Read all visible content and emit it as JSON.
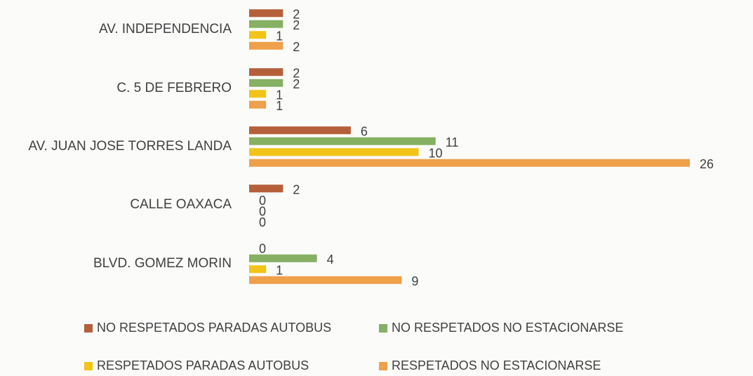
{
  "chart_data": {
    "type": "hbar",
    "categories": [
      "AV. INDEPENDENCIA",
      "C. 5 DE FEBRERO",
      "AV. JUAN JOSE TORRES LANDA",
      "CALLE OAXACA",
      "BLVD. GOMEZ MORIN"
    ],
    "series": [
      {
        "name": "NO RESPETADOS PARADAS AUTOBUS",
        "color": "#b5603a",
        "values": [
          2,
          2,
          6,
          2,
          0
        ]
      },
      {
        "name": "NO RESPETADOS NO ESTACIONARSE",
        "color": "#86b062",
        "values": [
          2,
          2,
          11,
          0,
          4
        ]
      },
      {
        "name": "RESPETADOS PARADAS AUTOBUS",
        "color": "#f2c418",
        "values": [
          1,
          1,
          10,
          0,
          1
        ]
      },
      {
        "name": "RESPETADOS NO ESTACIONARSE",
        "color": "#eea04a",
        "values": [
          2,
          1,
          26,
          0,
          9
        ]
      }
    ],
    "legend": "bottom"
  }
}
